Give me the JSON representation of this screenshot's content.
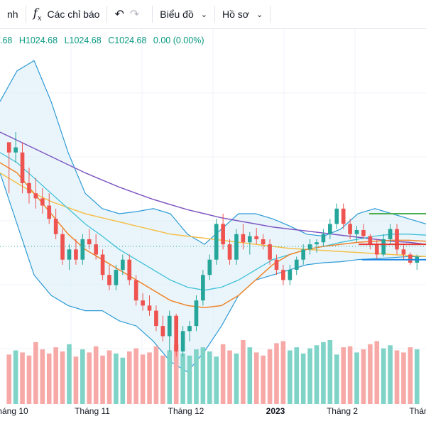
{
  "toolbar": {
    "first_partial": "nh",
    "indicators_label": "Các chỉ báo",
    "chart_menu_label": "Biểu đồ",
    "profile_menu_label": "Hồ sơ"
  },
  "ohlc": {
    "open": ".68",
    "high": "H1024.68",
    "low": "L1024.68",
    "close": "C1024.68",
    "change": "0.00 (0.00%)"
  },
  "chart_data": {
    "type": "candlestick",
    "x_labels": [
      {
        "label": "háng 10",
        "bold": false
      },
      {
        "label": "Tháng 11",
        "bold": false
      },
      {
        "label": "Tháng 12",
        "bold": false
      },
      {
        "label": "2023",
        "bold": true
      },
      {
        "label": "Tháng 2",
        "bold": false
      },
      {
        "label": "Thán",
        "bold": false
      }
    ],
    "colors": {
      "up": "#26a69a",
      "down": "#ef5350",
      "vol_up": "#7fd3c7",
      "vol_down": "#f7a9a7",
      "ma_long": "#7e57c2",
      "ma_mid": "#f5c04a",
      "ma_short": "#f0862b",
      "bollinger": "#2e9bd6",
      "bollinger_fill": "#dbeef8",
      "teal_line": "#41c1d9",
      "level_green": "#4caf50",
      "level_red": "#e53935",
      "level_blue": "#1e88e5"
    },
    "candles": [
      [
        1110,
        1110,
        1060,
        1100
      ],
      [
        1100,
        1120,
        1090,
        1105
      ],
      [
        1100,
        1110,
        1060,
        1070
      ],
      [
        1070,
        1085,
        1050,
        1060
      ],
      [
        1060,
        1075,
        1045,
        1055
      ],
      [
        1055,
        1065,
        1040,
        1048
      ],
      [
        1048,
        1060,
        1030,
        1035
      ],
      [
        1035,
        1045,
        1015,
        1020
      ],
      [
        1020,
        1025,
        990,
        995
      ],
      [
        995,
        1010,
        985,
        1005
      ],
      [
        1005,
        1015,
        990,
        995
      ],
      [
        995,
        1020,
        990,
        1015
      ],
      [
        1015,
        1025,
        1005,
        1010
      ],
      [
        1010,
        1020,
        995,
        1000
      ],
      [
        1000,
        1005,
        975,
        980
      ],
      [
        980,
        990,
        965,
        970
      ],
      [
        970,
        990,
        965,
        985
      ],
      [
        985,
        1000,
        980,
        995
      ],
      [
        995,
        1000,
        970,
        975
      ],
      [
        975,
        980,
        950,
        955
      ],
      [
        955,
        962,
        945,
        950
      ],
      [
        950,
        960,
        940,
        945
      ],
      [
        945,
        950,
        925,
        930
      ],
      [
        930,
        940,
        915,
        920
      ],
      [
        920,
        945,
        905,
        940
      ],
      [
        940,
        942,
        900,
        905
      ],
      [
        905,
        930,
        900,
        925
      ],
      [
        925,
        935,
        915,
        930
      ],
      [
        930,
        960,
        925,
        955
      ],
      [
        955,
        985,
        950,
        980
      ],
      [
        980,
        1000,
        975,
        995
      ],
      [
        995,
        1035,
        990,
        1030
      ],
      [
        1030,
        1040,
        1005,
        1010
      ],
      [
        1010,
        1015,
        990,
        995
      ],
      [
        995,
        1025,
        990,
        1020
      ],
      [
        1020,
        1030,
        1005,
        1012
      ],
      [
        1012,
        1022,
        1000,
        1018
      ],
      [
        1018,
        1026,
        1010,
        1015
      ],
      [
        1015,
        1020,
        1005,
        1010
      ],
      [
        1010,
        1015,
        990,
        995
      ],
      [
        995,
        1000,
        980,
        985
      ],
      [
        985,
        990,
        970,
        975
      ],
      [
        975,
        990,
        970,
        985
      ],
      [
        985,
        998,
        980,
        995
      ],
      [
        995,
        1010,
        990,
        1005
      ],
      [
        1005,
        1015,
        1000,
        1010
      ],
      [
        1010,
        1015,
        1002,
        1012
      ],
      [
        1012,
        1025,
        1008,
        1020
      ],
      [
        1020,
        1035,
        1015,
        1030
      ],
      [
        1030,
        1050,
        1025,
        1045
      ],
      [
        1045,
        1050,
        1025,
        1030
      ],
      [
        1030,
        1035,
        1015,
        1020
      ],
      [
        1020,
        1028,
        1012,
        1024
      ],
      [
        1024,
        1030,
        1015,
        1018
      ],
      [
        1018,
        1020,
        1005,
        1010
      ],
      [
        1010,
        1015,
        995,
        1000
      ],
      [
        1000,
        1020,
        998,
        1015
      ],
      [
        1015,
        1030,
        1010,
        1025
      ],
      [
        1025,
        1030,
        1000,
        1005
      ],
      [
        1005,
        1010,
        995,
        1000
      ],
      [
        1000,
        1002,
        990,
        992
      ],
      [
        992,
        1000,
        985,
        998
      ]
    ],
    "volume": [
      48,
      52,
      50,
      47,
      60,
      53,
      49,
      55,
      51,
      58,
      46,
      53,
      50,
      56,
      47,
      52,
      49,
      45,
      51,
      54,
      48,
      50,
      56,
      47,
      52,
      58,
      49,
      47,
      53,
      55,
      51,
      46,
      58,
      52,
      49,
      62,
      55,
      50,
      47,
      53,
      59,
      61,
      52,
      55,
      49,
      54,
      57,
      60,
      62,
      48,
      55,
      56,
      50,
      53,
      58,
      61,
      54,
      57,
      52,
      50,
      55,
      53
    ],
    "ma_long": [
      1120,
      1112,
      1104,
      1096,
      1088,
      1080,
      1073,
      1066,
      1060,
      1054,
      1049,
      1044,
      1040,
      1036,
      1033,
      1030,
      1027,
      1025,
      1023,
      1021,
      1019,
      1017,
      1015,
      1013,
      1012,
      1010
    ],
    "ma_mid": [
      1080,
      1070,
      1060,
      1052,
      1046,
      1040,
      1036,
      1032,
      1028,
      1024,
      1020,
      1018,
      1016,
      1014,
      1012,
      1010,
      1008,
      1006,
      1005,
      1004,
      1003,
      1002,
      1001,
      1000,
      999,
      998
    ],
    "ma_short": [
      1090,
      1080,
      1060,
      1040,
      1020,
      1005,
      995,
      985,
      975,
      965,
      955,
      950,
      948,
      950,
      960,
      975,
      990,
      1000,
      1005,
      1008,
      1010,
      1012,
      1013,
      1014,
      1014,
      1013
    ],
    "teal_line": [
      1100,
      1090,
      1075,
      1060,
      1045,
      1030,
      1018,
      1005,
      995,
      985,
      975,
      968,
      965,
      968,
      975,
      985,
      995,
      1000,
      1005,
      1008,
      1012,
      1015,
      1018,
      1020,
      1020,
      1019
    ],
    "boll_upper": [
      1150,
      1180,
      1190,
      1150,
      1100,
      1060,
      1045,
      1040,
      1042,
      1045,
      1040,
      1020,
      1010,
      1025,
      1040,
      1040,
      1035,
      1028,
      1020,
      1018,
      1025,
      1040,
      1045,
      1040,
      1035,
      1030
    ],
    "boll_lower": [
      1080,
      1030,
      980,
      960,
      950,
      945,
      945,
      935,
      930,
      915,
      895,
      885,
      905,
      930,
      960,
      975,
      980,
      985,
      990,
      992,
      993,
      995,
      996,
      997,
      998,
      998
    ],
    "levels": {
      "green": 1040,
      "red": 1010,
      "blue": 995
    }
  }
}
